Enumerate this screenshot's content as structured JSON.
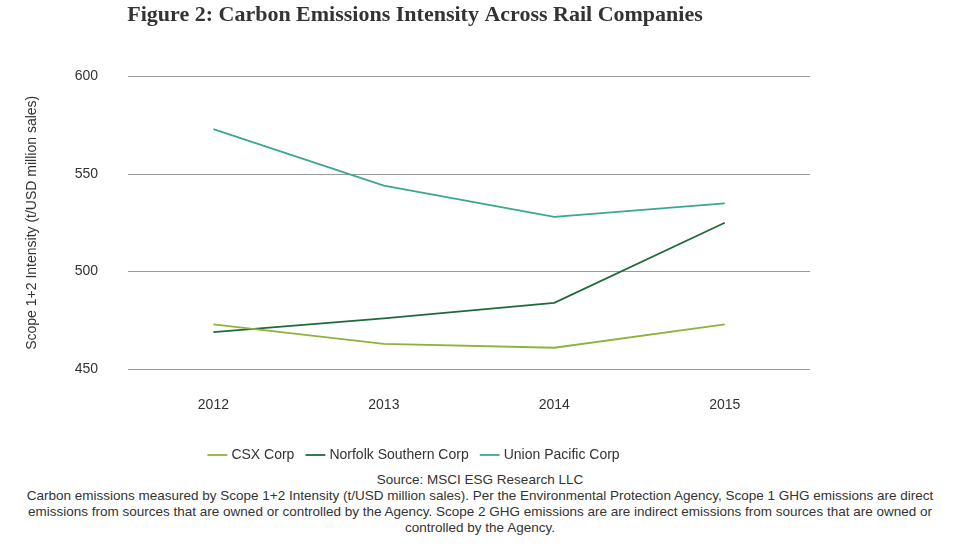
{
  "chart_data": {
    "type": "line",
    "title": "Figure 2: Carbon Emissions Intensity Across Rail Companies",
    "y_label": "Scope 1+2 Intensity (t/USD million sales)",
    "categories": [
      "2012",
      "2013",
      "2014",
      "2015"
    ],
    "series": [
      {
        "name": "CSX Corp",
        "color": "#8db33a",
        "values": [
          473,
          463,
          461,
          473
        ]
      },
      {
        "name": "Norfolk Southern Corp",
        "color": "#1e6b3a",
        "values": [
          469,
          476,
          484,
          525
        ]
      },
      {
        "name": "Union Pacific Corp",
        "color": "#3aa88f",
        "values": [
          573,
          544,
          528,
          535
        ]
      }
    ],
    "ylim": [
      450,
      600
    ],
    "yticks": [
      450,
      500,
      550,
      600
    ],
    "grid": true,
    "legend": "bottom",
    "annotations": [
      "Source: MSCI ESG Research LLC",
      "Carbon emissions measured by Scope 1+2 Intensity (t/USD million sales). Per the Environmental Protection Agency, Scope 1 GHG emissions are direct emissions from sources that are owned or controlled by the Agency. Scope 2 GHG emissions are are indirect emissions from sources that are owned or controlled by the Agency."
    ]
  }
}
